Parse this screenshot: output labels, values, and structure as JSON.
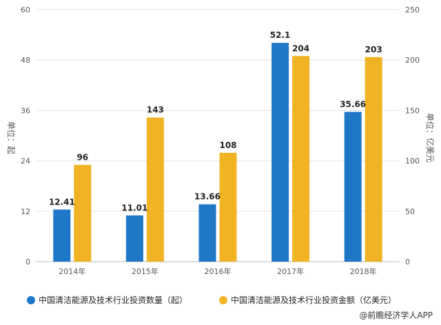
{
  "chart_data": {
    "type": "bar",
    "categories": [
      "2014年",
      "2015年",
      "2016年",
      "2017年",
      "2018年"
    ],
    "series": [
      {
        "name": "中国清洁能源及技术行业投资数量（起）",
        "axis": "left",
        "values": [
          12.41,
          11.01,
          13.66,
          52.1,
          35.66
        ],
        "labels": [
          "12.41",
          "11.01",
          "13.66",
          "52.1",
          "35.66"
        ],
        "color": "#1f77c8"
      },
      {
        "name": "中国清洁能源及技术行业投资金额（亿美元）",
        "axis": "right",
        "values": [
          96,
          143,
          108,
          204,
          203
        ],
        "labels": [
          "96",
          "143",
          "108",
          "204",
          "203"
        ],
        "color": "#f0b323"
      }
    ],
    "y_left": {
      "label": "单位：起",
      "min": 0,
      "max": 60,
      "ticks": [
        "0",
        "12",
        "24",
        "36",
        "48",
        "60"
      ]
    },
    "y_right": {
      "label": "单位：亿美元",
      "min": 0,
      "max": 250,
      "ticks": [
        "0",
        "50",
        "100",
        "150",
        "200",
        "250"
      ]
    },
    "grid": "horizontal",
    "legend_position": "bottom"
  },
  "source": "@前瞻经济学人APP"
}
